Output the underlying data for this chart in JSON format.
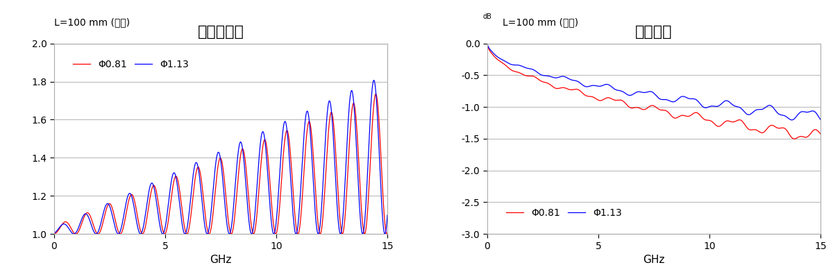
{
  "left_title": "电压驻波比",
  "left_subtitle": "L=100 mm (线束)",
  "left_xlabel": "GHz",
  "left_xlim": [
    0,
    15
  ],
  "left_ylim": [
    1.0,
    2.0
  ],
  "left_yticks": [
    1.0,
    1.2,
    1.4,
    1.6,
    1.8,
    2.0
  ],
  "left_xticks": [
    0,
    5,
    10,
    15
  ],
  "right_title": "插入损失",
  "right_subtitle": "L=100 mm (线束)",
  "right_subtitle_prefix": "dB",
  "right_xlabel": "GHz",
  "right_xlim": [
    0,
    15
  ],
  "right_ylim": [
    -3.0,
    0.0
  ],
  "right_yticks": [
    0.0,
    -0.5,
    -1.0,
    -1.5,
    -2.0,
    -2.5,
    -3.0
  ],
  "right_xticks": [
    0,
    5,
    10,
    15
  ],
  "color_red": "#FF0000",
  "color_blue": "#0000FF",
  "label_red": "Φ0.81",
  "label_blue": "Φ1.13",
  "bg_color": "#FFFFFF",
  "grid_color": "#BBBBBB",
  "title_fontsize": 16,
  "subtitle_fontsize": 10,
  "legend_fontsize": 10,
  "tick_fontsize": 10,
  "xlabel_fontsize": 11
}
